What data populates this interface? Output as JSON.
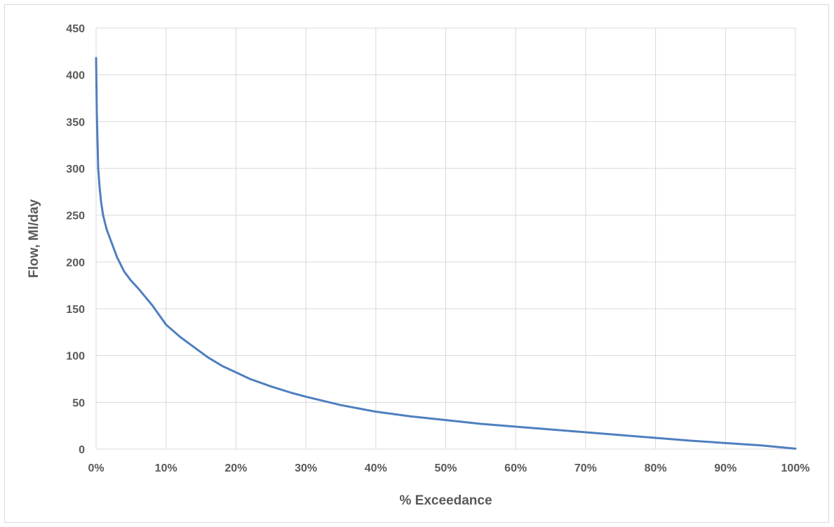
{
  "chart_data": {
    "type": "line",
    "title": "",
    "xlabel": "% Exceedance",
    "ylabel": "Flow, Ml/day",
    "xlim": [
      0,
      100
    ],
    "ylim": [
      0,
      450
    ],
    "x_ticks": [
      0,
      10,
      20,
      30,
      40,
      50,
      60,
      70,
      80,
      90,
      100
    ],
    "x_tick_labels": [
      "0%",
      "10%",
      "20%",
      "30%",
      "40%",
      "50%",
      "60%",
      "70%",
      "80%",
      "90%",
      "100%"
    ],
    "y_ticks": [
      0,
      50,
      100,
      150,
      200,
      250,
      300,
      350,
      400,
      450
    ],
    "y_tick_labels": [
      "0",
      "50",
      "100",
      "150",
      "200",
      "250",
      "300",
      "350",
      "400",
      "450"
    ],
    "grid": true,
    "legend": "none",
    "line_color": "#4f7fbf",
    "grid_color": "#d9d9d9",
    "series": [
      {
        "x": [
          0,
          0.1,
          0.2,
          0.3,
          0.5,
          0.7,
          1,
          1.5,
          2,
          3,
          4,
          5,
          6,
          7,
          8,
          10,
          12,
          14,
          16,
          18,
          20,
          22,
          25,
          28,
          30,
          35,
          40,
          45,
          50,
          55,
          60,
          65,
          70,
          75,
          80,
          85,
          90,
          95,
          100
        ],
        "y": [
          418,
          360,
          330,
          300,
          280,
          265,
          250,
          235,
          225,
          205,
          190,
          180,
          172,
          163,
          154,
          133,
          120,
          109,
          98,
          89,
          82,
          75,
          67,
          60,
          56,
          47,
          40,
          35,
          31,
          27,
          24,
          21,
          18,
          15,
          12,
          9,
          6.5,
          4,
          0.5
        ]
      }
    ]
  }
}
